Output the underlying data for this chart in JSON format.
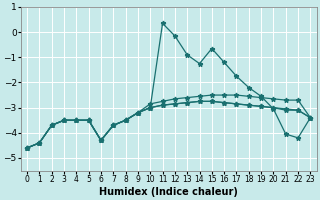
{
  "xlabel": "Humidex (Indice chaleur)",
  "background_color": "#c8eaea",
  "grid_color": "#ffffff",
  "line_color": "#1a7070",
  "x": [
    0,
    1,
    2,
    3,
    4,
    5,
    6,
    7,
    8,
    9,
    10,
    11,
    12,
    13,
    14,
    15,
    16,
    17,
    18,
    19,
    20,
    21,
    22,
    23
  ],
  "line1": [
    -4.6,
    -4.4,
    -3.7,
    -3.5,
    -3.5,
    -3.5,
    -4.3,
    -3.7,
    -3.5,
    -3.2,
    -3.0,
    0.35,
    -0.15,
    -0.9,
    -1.25,
    -0.65,
    -1.2,
    -1.75,
    -2.2,
    -2.55,
    -3.05,
    -4.05,
    -4.2,
    -3.4
  ],
  "line2": [
    -4.6,
    -4.4,
    -3.7,
    -3.5,
    -3.5,
    -3.5,
    -4.3,
    -3.7,
    -3.5,
    -3.2,
    -2.85,
    -2.75,
    -2.65,
    -2.6,
    -2.55,
    -2.5,
    -2.5,
    -2.5,
    -2.55,
    -2.6,
    -2.65,
    -2.7,
    -2.7,
    -3.4
  ],
  "line3": [
    -4.6,
    -4.4,
    -3.7,
    -3.5,
    -3.5,
    -3.5,
    -4.3,
    -3.7,
    -3.5,
    -3.2,
    -3.0,
    -2.9,
    -2.85,
    -2.8,
    -2.75,
    -2.75,
    -2.8,
    -2.85,
    -2.9,
    -2.95,
    -3.0,
    -3.05,
    -3.1,
    -3.4
  ],
  "line4": [
    -4.6,
    -4.4,
    -3.7,
    -3.5,
    -3.5,
    -3.5,
    -4.3,
    -3.7,
    -3.5,
    -3.2,
    -3.0,
    -2.9,
    -2.85,
    -2.8,
    -2.75,
    -2.75,
    -2.8,
    -2.85,
    -2.9,
    -2.95,
    -3.0,
    -3.1,
    -3.1,
    -3.4
  ],
  "ylim": [
    -5.5,
    1.0
  ],
  "xlim": [
    -0.5,
    23.5
  ],
  "yticks": [
    -5,
    -4,
    -3,
    -2,
    -1,
    0,
    1
  ],
  "xtick_labels": [
    "0",
    "1",
    "2",
    "3",
    "4",
    "5",
    "6",
    "7",
    "8",
    "9",
    "10",
    "11",
    "12",
    "13",
    "14",
    "15",
    "16",
    "17",
    "18",
    "19",
    "20",
    "21",
    "22",
    "23"
  ]
}
